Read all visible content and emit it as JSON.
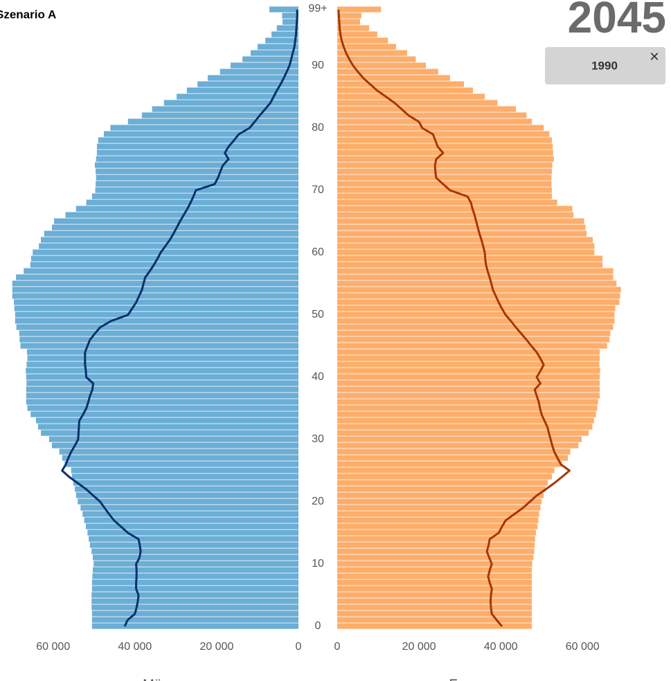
{
  "chart_data": {
    "type": "pyramid",
    "title": "Szenario A",
    "year": "2045",
    "compare_year": "1990",
    "close_symbol": "×",
    "categories": [
      "0",
      null,
      null,
      null,
      null,
      null,
      null,
      null,
      null,
      null,
      "10",
      null,
      null,
      null,
      null,
      null,
      null,
      null,
      null,
      null,
      "20",
      null,
      null,
      null,
      null,
      null,
      null,
      null,
      null,
      null,
      "30",
      null,
      null,
      null,
      null,
      null,
      null,
      null,
      null,
      null,
      "40",
      null,
      null,
      null,
      null,
      null,
      null,
      null,
      null,
      null,
      "50",
      null,
      null,
      null,
      null,
      null,
      null,
      null,
      null,
      null,
      "60",
      null,
      null,
      null,
      null,
      null,
      null,
      null,
      null,
      null,
      "70",
      null,
      null,
      null,
      null,
      null,
      null,
      null,
      null,
      null,
      "80",
      null,
      null,
      null,
      null,
      null,
      null,
      null,
      null,
      null,
      "90",
      null,
      null,
      null,
      null,
      null,
      null,
      null,
      null,
      "99+"
    ],
    "xlim": [
      0,
      73000
    ],
    "xticks": [
      0,
      {
        "value": 20000,
        "label": "20 000"
      },
      {
        "value": 40000,
        "label": "40 000"
      },
      {
        "value": 60000,
        "label": "60 000"
      }
    ],
    "series": [
      {
        "name": "Männer",
        "side": "left",
        "color": "#6baed6",
        "line_color": "#08306b",
        "values": [
          50500,
          50500,
          50500,
          50600,
          50600,
          50600,
          50500,
          50500,
          50400,
          50300,
          50100,
          50300,
          50600,
          51000,
          51300,
          51600,
          52000,
          52400,
          52800,
          53300,
          54000,
          54400,
          54700,
          55100,
          55400,
          55600,
          57200,
          57800,
          58500,
          60300,
          61000,
          63000,
          63700,
          64200,
          65500,
          66300,
          66600,
          66600,
          66600,
          66500,
          66600,
          66700,
          66500,
          66300,
          66400,
          68000,
          68200,
          68300,
          69000,
          69300,
          69300,
          69500,
          69600,
          70000,
          70000,
          70000,
          69100,
          67200,
          65600,
          65400,
          65000,
          63500,
          63000,
          62200,
          60300,
          59800,
          57000,
          54400,
          51900,
          50500,
          49700,
          49600,
          49500,
          49600,
          49800,
          49500,
          49300,
          49300,
          49000,
          47600,
          46000,
          41700,
          38300,
          35800,
          32900,
          29800,
          27300,
          24700,
          22200,
          19200,
          16600,
          13700,
          11700,
          10000,
          8100,
          6600,
          5300,
          3900,
          4000,
          7100
        ],
        "line_values": [
          42500,
          41800,
          40000,
          39600,
          39300,
          39100,
          39700,
          39700,
          39600,
          39600,
          39700,
          38900,
          38600,
          38800,
          39100,
          41700,
          43400,
          45100,
          46300,
          47400,
          48500,
          50200,
          51900,
          54000,
          56100,
          57800,
          56900,
          56300,
          55600,
          54700,
          53900,
          53800,
          53700,
          53600,
          52700,
          51900,
          51400,
          51000,
          50400,
          50200,
          51900,
          52000,
          52200,
          52200,
          52200,
          51600,
          51000,
          49800,
          48500,
          45900,
          41700,
          40700,
          39700,
          39000,
          38300,
          37900,
          37500,
          36400,
          35400,
          34500,
          33700,
          32600,
          31500,
          30600,
          29800,
          29000,
          28100,
          27200,
          26400,
          25700,
          25100,
          20500,
          19700,
          19100,
          18500,
          17100,
          18000,
          17100,
          15800,
          14600,
          12000,
          10700,
          9500,
          8200,
          6900,
          6100,
          5300,
          4400,
          3600,
          2900,
          2200,
          1800,
          1400,
          1000,
          800,
          600,
          500,
          400,
          300,
          300
        ]
      },
      {
        "name": "Frauen",
        "side": "right",
        "color": "#fdae6b",
        "line_color": "#a63603",
        "values": [
          47600,
          47600,
          47600,
          47600,
          47600,
          47600,
          47600,
          47600,
          47600,
          47600,
          47700,
          48000,
          48200,
          48300,
          48400,
          48600,
          49000,
          49200,
          49400,
          49700,
          50000,
          50500,
          51000,
          51500,
          52500,
          53100,
          55000,
          56400,
          57000,
          59000,
          59800,
          61500,
          62400,
          62800,
          63300,
          63600,
          63800,
          64200,
          64200,
          64200,
          64200,
          64300,
          64100,
          64200,
          64200,
          66000,
          66600,
          66800,
          67500,
          67800,
          67800,
          68000,
          69000,
          69200,
          69400,
          68300,
          67500,
          67500,
          64900,
          64900,
          62900,
          62900,
          62500,
          61000,
          60700,
          60400,
          57800,
          57500,
          53800,
          52500,
          52500,
          52400,
          52400,
          52500,
          52600,
          53000,
          52800,
          52700,
          52500,
          51900,
          50500,
          47600,
          46300,
          43700,
          39200,
          36100,
          33200,
          31000,
          27600,
          24700,
          21700,
          19200,
          17100,
          14400,
          12400,
          9800,
          7800,
          5600,
          5900,
          10700
        ],
        "line_values": [
          40300,
          39000,
          37800,
          37600,
          37500,
          37600,
          37800,
          37300,
          36900,
          37300,
          37800,
          37200,
          36600,
          37000,
          37300,
          39500,
          40300,
          41200,
          43300,
          45400,
          47100,
          48800,
          51000,
          53100,
          55000,
          56800,
          54700,
          53900,
          53100,
          52600,
          52200,
          51800,
          51400,
          50700,
          50000,
          49600,
          49300,
          48800,
          48300,
          49700,
          48800,
          49700,
          50500,
          49700,
          48800,
          47500,
          46300,
          45000,
          43700,
          42500,
          41200,
          40300,
          39500,
          38800,
          38100,
          37700,
          37300,
          36800,
          36400,
          36200,
          36100,
          35700,
          35300,
          34800,
          34400,
          34000,
          33600,
          33100,
          32700,
          31900,
          27600,
          25900,
          24200,
          24000,
          23900,
          24200,
          25900,
          24600,
          24000,
          23400,
          20800,
          20000,
          17500,
          15800,
          14100,
          12000,
          9800,
          8100,
          6400,
          5100,
          3900,
          3000,
          2200,
          1600,
          1100,
          800,
          600,
          500,
          400,
          300
        ]
      }
    ]
  }
}
